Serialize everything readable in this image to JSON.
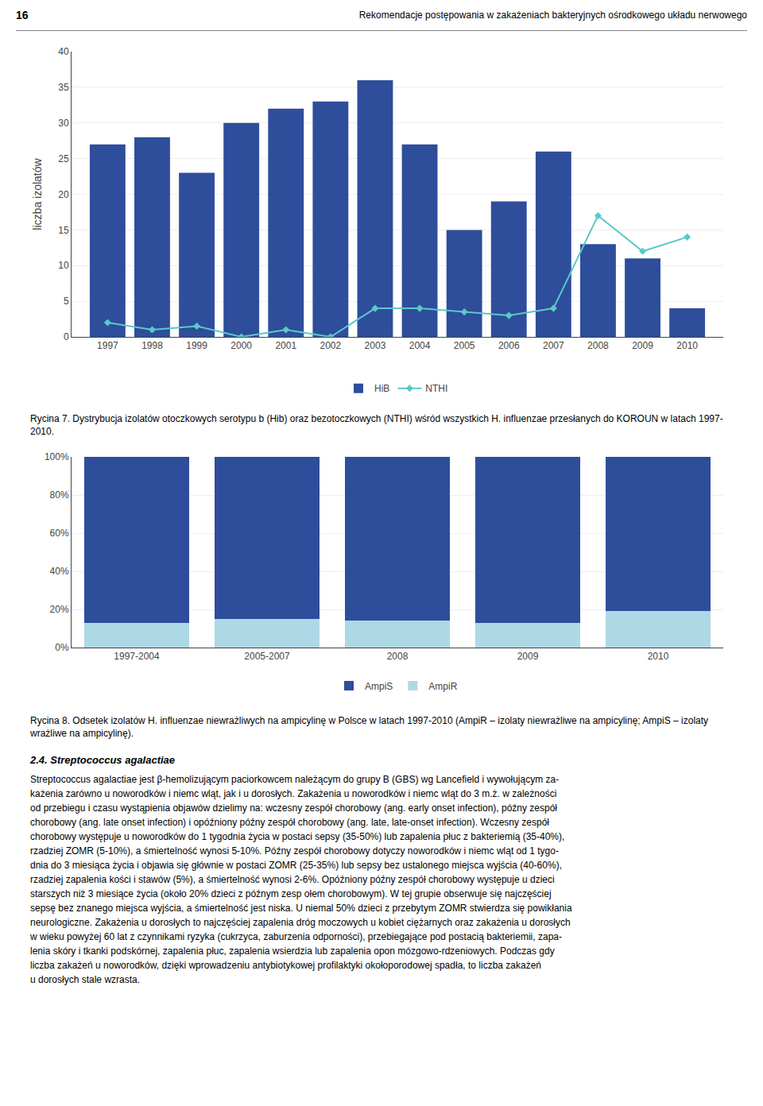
{
  "header": [
    "16",
    "Rekomendacje postępowania w zakażeniach bakteryjnych ośrodkowego układu nerwowego"
  ],
  "chart_data": [
    {
      "type": "bar",
      "caption": "Rycina 7. Dystrybucja izolatów otoczkowych serotypu b (Hib) oraz bezotoczkowych (NTHI) wśród wszystkich H. influenzae przesłanych do KOROUN w latach 1997-2010.",
      "categories": [
        "1997",
        "1998",
        "1999",
        "2000",
        "2001",
        "2002",
        "2003",
        "2004",
        "2005",
        "2006",
        "2007",
        "2008",
        "2009",
        "2010"
      ],
      "series": [
        {
          "name": "HiB",
          "type": "bar",
          "color": "#2E4D9B",
          "values": [
            27,
            28,
            23,
            30,
            32,
            33,
            36,
            27,
            15,
            19,
            26,
            13,
            11,
            4
          ]
        },
        {
          "name": "NTHI",
          "type": "line",
          "color": "#5BC8C8",
          "marker": "diamond",
          "values": [
            2,
            1,
            1.5,
            0,
            1,
            0,
            4,
            4,
            3.5,
            3,
            4,
            17,
            12,
            14
          ]
        }
      ],
      "ylabel": "liczba izolatów",
      "ylim": [
        0,
        40
      ],
      "yticks": [
        0,
        5,
        10,
        15,
        20,
        25,
        30,
        35,
        40
      ],
      "grid": true,
      "legend": "bottom"
    },
    {
      "type": "bar",
      "caption": "Rycina 8. Odsetek izolatów H. influenzae niewrażliwych na ampicylinę w Polsce w latach 1997-2010 (AmpiR – izolaty niewrażliwe na ampicylinę; AmpiS – izolaty wrażliwe na ampicylinę).",
      "categories": [
        "1997-2004",
        "2005-2007",
        "2008",
        "2009",
        "2010"
      ],
      "series": [
        {
          "name": "AmpiR",
          "color": "#ADD8E6",
          "values": [
            0.13,
            0.15,
            0.14,
            0.13,
            0.19
          ]
        },
        {
          "name": "AmpiS",
          "color": "#2E4D9B",
          "values": [
            0.87,
            0.85,
            0.86,
            0.87,
            0.81
          ]
        }
      ],
      "stacked": true,
      "ylim": [
        0,
        1.0
      ],
      "yticks": [
        {
          "value": 0.0,
          "label": "0%"
        },
        {
          "value": 0.2,
          "label": "20%"
        },
        {
          "value": 0.4,
          "label": "40%"
        },
        {
          "value": 0.6,
          "label": "60%"
        },
        {
          "value": 0.8,
          "label": "80%"
        },
        {
          "value": 1.0,
          "label": "100%"
        }
      ],
      "grid": true,
      "legend": "bottom"
    }
  ],
  "section_heading": "2.4. Streptococcus agalactiae",
  "body": [
    "Streptococcus agalactiae jest β-hemolizującym paciorkowcem należącym do grupy B (GBS) wg Lancefield i wywołującym za-",
    "każenia zarówno u noworodków i niemc wląt, jak i u dorosłych. Zakażenia u noworodków i niemc wląt do 3 m.ż. w zależności",
    "od przebiegu i czasu wystąpienia objawów dzielimy na: wczesny zespół chorobowy (ang. early onset infection), późny zespół",
    "chorobowy (ang. late onset infection) i opóźniony późny zespół chorobowy (ang. late, late-onset infection). Wczesny zespół",
    "chorobowy występuje u noworodków do 1 tygodnia życia w postaci sepsy (35-50%) lub zapalenia płuc z bakteriemią (35-40%),",
    "rzadziej ZOMR (5-10%), a śmiertelność wynosi 5-10%. Późny zespół chorobowy dotyczy noworodków i niemc wląt od 1 tygo-",
    "dnia do 3 miesiąca życia i objawia się głównie w postaci ZOMR (25-35%) lub sepsy bez ustalonego miejsca wyjścia (40-60%),",
    "rzadziej zapalenia kości i stawów (5%), a śmiertelność wynosi 2-6%. Opóźniony późny zespół chorobowy występuje u dzieci",
    "starszych niż 3 miesiące życia (około 20% dzieci z późnym zesp ołem chorobowym). W tej grupie obserwuje się najczęściej",
    "sepsę bez znanego miejsca wyjścia, a śmiertelność jest niska. U niemal 50% dzieci z przebytym ZOMR stwierdza się powikłania",
    "neurologiczne. Zakażenia u dorosłych to najczęściej zapalenia dróg moczowych u kobiet ciężarnych oraz zakażenia u dorosłych",
    "w wieku powyżej 60 lat z czynnikami ryzyka (cukrzyca, zaburzenia odporności), przebiegające pod postacią bakteriemii, zapa-",
    "lenia skóry i tkanki podskórnej, zapalenia płuc, zapalenia wsierdzia lub zapalenia opon mózgowo-rdzeniowych. Podczas gdy",
    "liczba zakażeń u noworodków, dzięki wprowadzeniu antybiotykowej profilaktyki okołoporodowej spadła, to liczba zakażeń",
    "u dorosłych stale wzrasta."
  ]
}
